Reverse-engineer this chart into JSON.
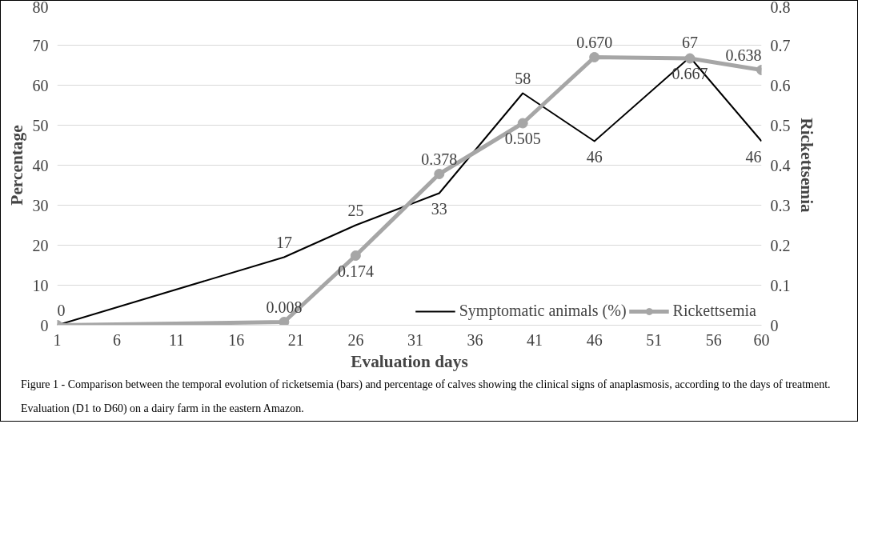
{
  "chart_data": {
    "type": "line",
    "xlabel": "Evaluation days",
    "ylabel": "Percentage",
    "y2label": "Rickettsemia",
    "x": [
      1,
      20,
      26,
      33,
      40,
      46,
      54,
      60
    ],
    "series": [
      {
        "name": "Symptomatic animals (%)",
        "color": "#000000",
        "values": [
          0,
          17,
          25,
          33,
          58,
          46,
          67,
          46
        ],
        "marker": "none",
        "data_labels": true
      },
      {
        "name": "Rickettsemia",
        "color": "#a6a6a6",
        "axis": "y2",
        "marker": "circle",
        "values": [
          0,
          0.008,
          0.174,
          0.378,
          0.505,
          0.67,
          0.667,
          0.638
        ],
        "value_labels": [
          null,
          "0.008",
          "0.174",
          "0.378",
          "0.505",
          "0.670",
          "0.667",
          "0.638"
        ]
      }
    ],
    "xlim": [
      1,
      60
    ],
    "xticks": [
      1,
      6,
      11,
      16,
      21,
      26,
      31,
      36,
      41,
      46,
      51,
      56,
      60
    ],
    "ylim": [
      0,
      80
    ],
    "yticks": [
      0,
      10,
      20,
      30,
      40,
      50,
      60,
      70,
      80
    ],
    "y2lim": [
      0,
      0.8
    ],
    "y2ticks": [
      0,
      0.1,
      0.2,
      0.3,
      0.4,
      0.5,
      0.6,
      0.7,
      0.8
    ],
    "grid": "y",
    "legend": "bottom right",
    "annotations": [
      "Figure 1 - Comparison between the temporal evolution of ricketsemia (bars) and percentage of calves showing the clinical signs of anaplasmosis, according to the days of treatment.",
      "Evaluation (D1 to D60) on a dairy farm in the eastern Amazon."
    ]
  }
}
